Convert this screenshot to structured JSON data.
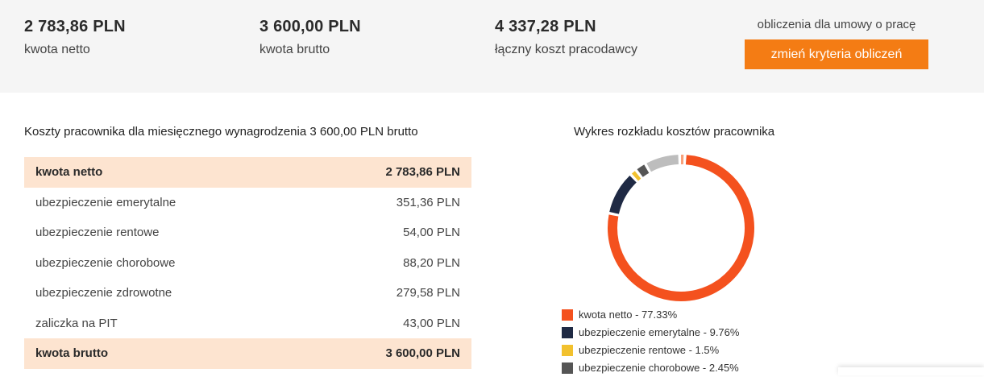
{
  "summary": {
    "netto": {
      "value": "2 783,86 PLN",
      "label": "kwota netto"
    },
    "brutto": {
      "value": "3 600,00 PLN",
      "label": "kwota brutto"
    },
    "employer": {
      "value": "4 337,28 PLN",
      "label": "łączny koszt pracodawcy"
    },
    "criteria_note": "obliczenia dla umowy o pracę",
    "change_button": "zmień kryteria obliczeń"
  },
  "costs": {
    "title": "Koszty pracownika dla miesięcznego wynagrodzenia 3 600,00 PLN brutto",
    "rows": [
      {
        "label": "kwota netto",
        "amount": "2 783,86 PLN",
        "highlight": true
      },
      {
        "label": "ubezpieczenie emerytalne",
        "amount": "351,36 PLN",
        "highlight": false
      },
      {
        "label": "ubezpieczenie rentowe",
        "amount": "54,00 PLN",
        "highlight": false
      },
      {
        "label": "ubezpieczenie chorobowe",
        "amount": "88,20 PLN",
        "highlight": false
      },
      {
        "label": "ubezpieczenie zdrowotne",
        "amount": "279,58 PLN",
        "highlight": false
      },
      {
        "label": "zaliczka na PIT",
        "amount": "43,00 PLN",
        "highlight": false
      },
      {
        "label": "kwota brutto",
        "amount": "3 600,00 PLN",
        "highlight": true
      }
    ]
  },
  "chart_data": {
    "type": "pie",
    "title": "Wykres rozkładu kosztów pracownika",
    "slices": [
      {
        "name": "kwota netto",
        "value": 77.33,
        "color": "#f4511e"
      },
      {
        "name": "ubezpieczenie emerytalne",
        "value": 9.76,
        "color": "#1f2a44"
      },
      {
        "name": "ubezpieczenie rentowe",
        "value": 1.5,
        "color": "#f2c12e"
      },
      {
        "name": "ubezpieczenie chorobowe",
        "value": 2.45,
        "color": "#555555"
      },
      {
        "name": "ubezpieczenie zdrowotne",
        "value": 7.77,
        "color": "#bdbdbd"
      },
      {
        "name": "zaliczka na PIT",
        "value": 1.19,
        "color": "#f8a07a"
      }
    ],
    "legend_visible": [
      "kwota netto - 77.33%",
      "ubezpieczenie emerytalne - 9.76%",
      "ubezpieczenie rentowe - 1.5%",
      "ubezpieczenie chorobowe - 2.45%"
    ],
    "legend_position": "bottom"
  }
}
